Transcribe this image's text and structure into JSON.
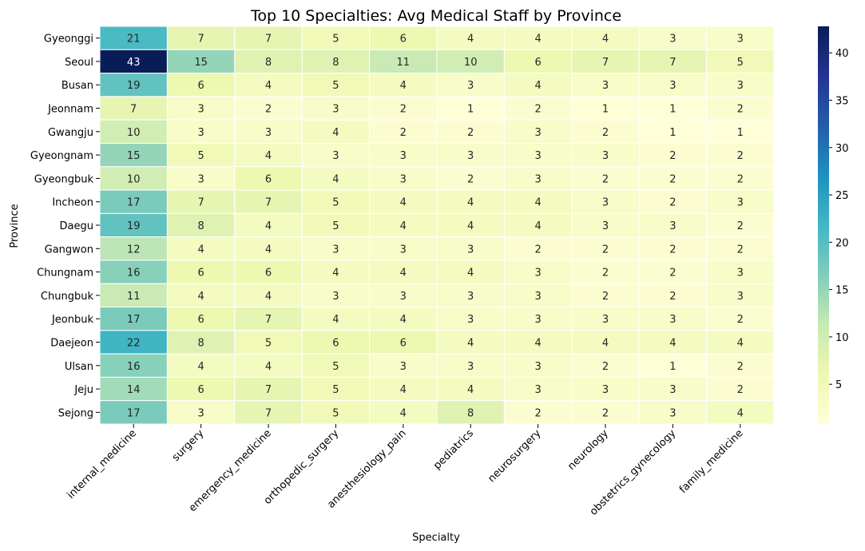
{
  "chart_data": {
    "type": "heatmap",
    "title": "Top 10 Specialties: Avg Medical Staff by Province",
    "xlabel": "Specialty",
    "ylabel": "Province",
    "x_categories": [
      "internal_medicine",
      "surgery",
      "emergency_medicine",
      "orthopedic_surgery",
      "anesthesiology_pain",
      "pediatrics",
      "neurosurgery",
      "neurology",
      "obstetrics_gynecology",
      "family_medicine"
    ],
    "y_categories": [
      "Gyeonggi",
      "Seoul",
      "Busan",
      "Jeonnam",
      "Gwangju",
      "Gyeongnam",
      "Gyeongbuk",
      "Incheon",
      "Daegu",
      "Gangwon",
      "Chungnam",
      "Chungbuk",
      "Jeonbuk",
      "Daejeon",
      "Ulsan",
      "Jeju",
      "Sejong"
    ],
    "values": [
      [
        21,
        7,
        7,
        5,
        6,
        4,
        4,
        4,
        3,
        3
      ],
      [
        43,
        15,
        8,
        8,
        11,
        10,
        6,
        7,
        7,
        5
      ],
      [
        19,
        6,
        4,
        5,
        4,
        3,
        4,
        3,
        3,
        3
      ],
      [
        7,
        3,
        2,
        3,
        2,
        1,
        2,
        1,
        1,
        2
      ],
      [
        10,
        3,
        3,
        4,
        2,
        2,
        3,
        2,
        1,
        1
      ],
      [
        15,
        5,
        4,
        3,
        3,
        3,
        3,
        3,
        2,
        2
      ],
      [
        10,
        3,
        6,
        4,
        3,
        2,
        3,
        2,
        2,
        2
      ],
      [
        17,
        7,
        7,
        5,
        4,
        4,
        4,
        3,
        2,
        3
      ],
      [
        19,
        8,
        4,
        5,
        4,
        4,
        4,
        3,
        3,
        2
      ],
      [
        12,
        4,
        4,
        3,
        3,
        3,
        2,
        2,
        2,
        2
      ],
      [
        16,
        6,
        6,
        4,
        4,
        4,
        3,
        2,
        2,
        3
      ],
      [
        11,
        4,
        4,
        3,
        3,
        3,
        3,
        2,
        2,
        3
      ],
      [
        17,
        6,
        7,
        4,
        4,
        3,
        3,
        3,
        3,
        2
      ],
      [
        22,
        8,
        5,
        6,
        6,
        4,
        4,
        4,
        4,
        4
      ],
      [
        16,
        4,
        4,
        5,
        3,
        3,
        3,
        2,
        1,
        2
      ],
      [
        14,
        6,
        7,
        5,
        4,
        4,
        3,
        3,
        3,
        2
      ],
      [
        17,
        3,
        7,
        5,
        4,
        8,
        2,
        2,
        3,
        4
      ]
    ],
    "vmin": 0.8,
    "vmax": 42.8,
    "colormap": "YlGnBu",
    "colorbar_ticks": [
      5,
      10,
      15,
      20,
      25,
      30,
      35,
      40
    ],
    "annotations": true,
    "grid": false,
    "legend": "colorbar-right"
  }
}
